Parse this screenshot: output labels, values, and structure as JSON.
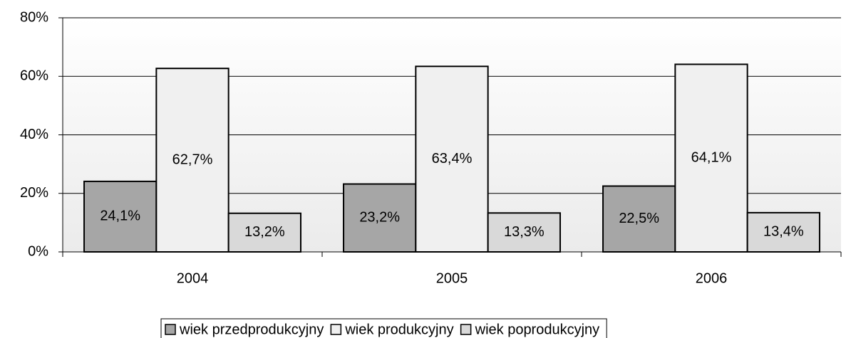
{
  "chart_data": {
    "type": "bar",
    "categories": [
      "2004",
      "2005",
      "2006"
    ],
    "series": [
      {
        "name": "wiek przedprodukcyjny",
        "color": "#a6a6a6",
        "values": [
          24.1,
          23.2,
          22.5
        ],
        "value_labels": [
          "24,1%",
          "23,2%",
          "22,5%"
        ]
      },
      {
        "name": "wiek produkcyjny",
        "color": "#f0f0f0",
        "values": [
          62.7,
          63.4,
          64.1
        ],
        "value_labels": [
          "62,7%",
          "63,4%",
          "64,1%"
        ]
      },
      {
        "name": "wiek poprodukcyjny",
        "color": "#d9d9d9",
        "values": [
          13.2,
          13.3,
          13.4
        ],
        "value_labels": [
          "13,2%",
          "13,3%",
          "13,4%"
        ]
      }
    ],
    "ylim": [
      0,
      80
    ],
    "yticks": [
      {
        "value": 0,
        "label": "0%"
      },
      {
        "value": 20,
        "label": "20%"
      },
      {
        "value": 40,
        "label": "40%"
      },
      {
        "value": 60,
        "label": "60%"
      },
      {
        "value": 80,
        "label": "80%"
      }
    ],
    "grid": true,
    "legend": "bottom"
  }
}
